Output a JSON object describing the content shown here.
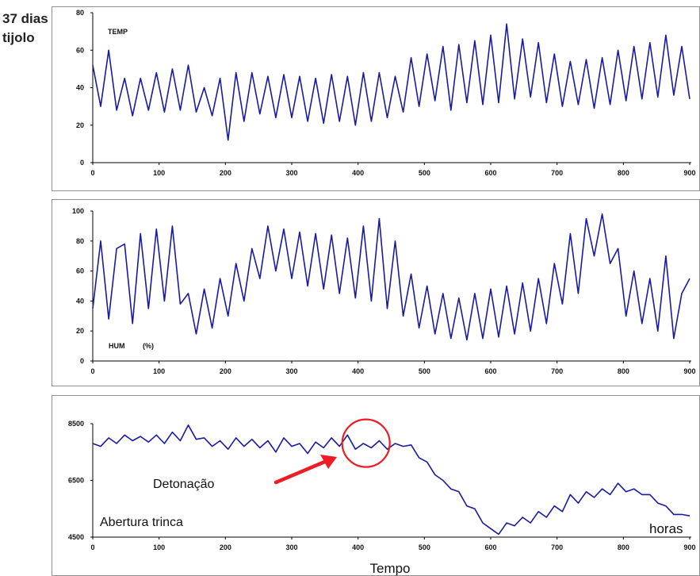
{
  "header": {
    "line1": "37 dias",
    "line2": "tijolo"
  },
  "colors": {
    "series": "#1a1aa0",
    "arrow": "#ee1c24",
    "circle": "#ee1c24",
    "frame": "#909090"
  },
  "footer": {
    "x_unit": "horas",
    "x_title": "Tempo"
  },
  "chart_data": [
    {
      "type": "line",
      "panel_label": "TEMP",
      "xlim": [
        0,
        900
      ],
      "ylim": [
        0,
        80
      ],
      "x_ticks": [
        "0",
        "100",
        "200",
        "300",
        "400",
        "500",
        "600",
        "700",
        "800",
        "900"
      ],
      "y_ticks": [
        "0",
        "20",
        "40",
        "60",
        "80"
      ],
      "grid": false,
      "series": [
        {
          "x": [
            0,
            12,
            24,
            36,
            48,
            60,
            72,
            84,
            96,
            108,
            120,
            132,
            144,
            156,
            168,
            180,
            192,
            204,
            216,
            228,
            240,
            252,
            264,
            276,
            288,
            300,
            312,
            324,
            336,
            348,
            360,
            372,
            384,
            396,
            408,
            420,
            432,
            444,
            456,
            468,
            480,
            492,
            504,
            516,
            528,
            540,
            552,
            564,
            576,
            588,
            600,
            612,
            624,
            636,
            648,
            660,
            672,
            684,
            696,
            708,
            720,
            732,
            744,
            756,
            768,
            780,
            792,
            804,
            816,
            828,
            840,
            852,
            864,
            876,
            888,
            900
          ],
          "y": [
            52,
            30,
            60,
            28,
            45,
            25,
            45,
            28,
            48,
            27,
            50,
            28,
            52,
            27,
            40,
            25,
            45,
            12,
            48,
            22,
            48,
            26,
            46,
            24,
            47,
            24,
            46,
            22,
            45,
            21,
            47,
            22,
            46,
            20,
            48,
            22,
            48,
            24,
            46,
            27,
            56,
            30,
            58,
            33,
            62,
            28,
            63,
            32,
            65,
            31,
            68,
            32,
            74,
            34,
            66,
            35,
            64,
            32,
            58,
            30,
            54,
            31,
            55,
            29,
            56,
            31,
            60,
            33,
            62,
            34,
            64,
            35,
            68,
            36,
            62,
            34
          ]
        }
      ]
    },
    {
      "type": "line",
      "panel_label": "HUM",
      "panel_unit": "(%)",
      "xlim": [
        0,
        900
      ],
      "ylim": [
        0,
        100
      ],
      "x_ticks": [
        "0",
        "100",
        "200",
        "300",
        "400",
        "500",
        "600",
        "700",
        "800",
        "900"
      ],
      "y_ticks": [
        "0",
        "20",
        "40",
        "60",
        "80",
        "100"
      ],
      "grid": false,
      "series": [
        {
          "x": [
            0,
            12,
            24,
            36,
            48,
            60,
            72,
            84,
            96,
            108,
            120,
            132,
            144,
            156,
            168,
            180,
            192,
            204,
            216,
            228,
            240,
            252,
            264,
            276,
            288,
            300,
            312,
            324,
            336,
            348,
            360,
            372,
            384,
            396,
            408,
            420,
            432,
            444,
            456,
            468,
            480,
            492,
            504,
            516,
            528,
            540,
            552,
            564,
            576,
            588,
            600,
            612,
            624,
            636,
            648,
            660,
            672,
            684,
            696,
            708,
            720,
            732,
            744,
            756,
            768,
            780,
            792,
            804,
            816,
            828,
            840,
            852,
            864,
            876,
            888,
            900
          ],
          "y": [
            35,
            80,
            28,
            75,
            78,
            25,
            85,
            35,
            88,
            40,
            90,
            38,
            45,
            18,
            48,
            22,
            55,
            30,
            65,
            40,
            75,
            55,
            90,
            60,
            88,
            55,
            86,
            50,
            85,
            48,
            84,
            45,
            82,
            42,
            90,
            40,
            95,
            35,
            80,
            30,
            58,
            22,
            50,
            18,
            45,
            15,
            42,
            14,
            45,
            15,
            48,
            16,
            50,
            18,
            52,
            20,
            55,
            25,
            65,
            38,
            85,
            45,
            95,
            70,
            98,
            65,
            75,
            30,
            60,
            25,
            55,
            20,
            70,
            15,
            45,
            55
          ]
        }
      ]
    },
    {
      "type": "line",
      "panel_label": "Abertura trinca",
      "xlim": [
        0,
        900
      ],
      "ylim": [
        4500,
        8500
      ],
      "x_ticks": [
        "0",
        "100",
        "200",
        "300",
        "400",
        "500",
        "600",
        "700",
        "800",
        "900"
      ],
      "y_ticks": [
        "4500",
        "6500",
        "8500"
      ],
      "grid": false,
      "annotation": {
        "text": "Detonação",
        "circle_center": [
          400,
          7700
        ]
      },
      "series": [
        {
          "x": [
            0,
            12,
            24,
            36,
            48,
            60,
            72,
            84,
            96,
            108,
            120,
            132,
            144,
            156,
            168,
            180,
            192,
            204,
            216,
            228,
            240,
            252,
            264,
            276,
            288,
            300,
            312,
            324,
            336,
            348,
            360,
            372,
            384,
            396,
            408,
            420,
            432,
            444,
            456,
            468,
            480,
            492,
            504,
            516,
            528,
            540,
            552,
            564,
            576,
            588,
            600,
            612,
            624,
            636,
            648,
            660,
            672,
            684,
            696,
            708,
            720,
            732,
            744,
            756,
            768,
            780,
            792,
            804,
            816,
            828,
            840,
            852,
            864,
            876,
            888,
            900
          ],
          "y": [
            7800,
            7700,
            8000,
            7800,
            8100,
            7900,
            8050,
            7850,
            8100,
            7800,
            8200,
            7900,
            8450,
            7950,
            8000,
            7700,
            7900,
            7600,
            8000,
            7700,
            7950,
            7650,
            7900,
            7500,
            8000,
            7700,
            7800,
            7450,
            7850,
            7650,
            8000,
            7700,
            8100,
            7600,
            7800,
            7650,
            7900,
            7600,
            7800,
            7700,
            7750,
            7300,
            7150,
            6700,
            6500,
            6200,
            6100,
            5600,
            5500,
            5000,
            4800,
            4600,
            5000,
            4900,
            5200,
            5000,
            5400,
            5200,
            5600,
            5400,
            6000,
            5700,
            6100,
            5900,
            6200,
            6000,
            6400,
            6100,
            6200,
            6000,
            6000,
            5700,
            5600,
            5300,
            5300,
            5250
          ]
        }
      ]
    }
  ]
}
